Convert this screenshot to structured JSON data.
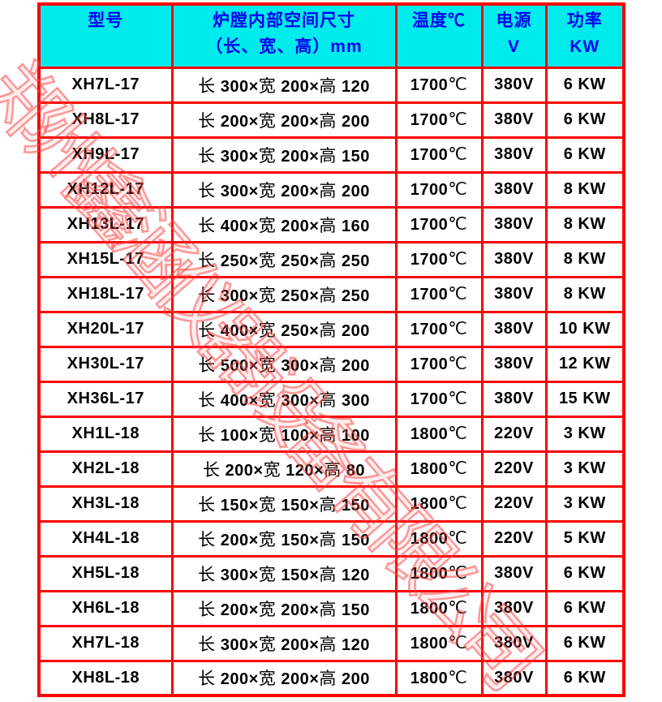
{
  "colors": {
    "border_color": "#ff0000",
    "header_bg": "#00ebeb",
    "header_text": "#0000ee",
    "watermark_red": "#ff4646"
  },
  "watermark": {
    "text": "郑州鑫涵仪器设备有限公司"
  },
  "table": {
    "headers": {
      "model": "型号",
      "size_line1": "炉膛内部空间尺寸",
      "size_line2": "（长、宽、高）mm",
      "temp": "温度℃",
      "voltage_line1": "电源",
      "voltage_line2": "V",
      "power_line1": "功率",
      "power_line2": "KW"
    },
    "rows": [
      {
        "model": "XH7L-17",
        "size": "长 300×宽 200×高 120",
        "temp": "1700℃",
        "voltage": "380V",
        "power": "6 KW"
      },
      {
        "model": "XH8L-17",
        "size": "长 200×宽 200×高 200",
        "temp": "1700℃",
        "voltage": "380V",
        "power": "6 KW"
      },
      {
        "model": "XH9L-17",
        "size": "长 300×宽 200×高 150",
        "temp": "1700℃",
        "voltage": "380V",
        "power": "6 KW"
      },
      {
        "model": "XH12L-17",
        "size": "长 300×宽 200×高 200",
        "temp": "1700℃",
        "voltage": "380V",
        "power": "8 KW"
      },
      {
        "model": "XH13L-17",
        "size": "长 400×宽 200×高 160",
        "temp": "1700℃",
        "voltage": "380V",
        "power": "8 KW"
      },
      {
        "model": "XH15L-17",
        "size": "长 250×宽 250×高 250",
        "temp": "1700℃",
        "voltage": "380V",
        "power": "8 KW"
      },
      {
        "model": "XH18L-17",
        "size": "长 300×宽 250×高 250",
        "temp": "1700℃",
        "voltage": "380V",
        "power": "8 KW"
      },
      {
        "model": "XH20L-17",
        "size": "长 400×宽 250×高 200",
        "temp": "1700℃",
        "voltage": "380V",
        "power": "10 KW"
      },
      {
        "model": "XH30L-17",
        "size": "长 500×宽 300×高 200",
        "temp": "1700℃",
        "voltage": "380V",
        "power": "12 KW"
      },
      {
        "model": "XH36L-17",
        "size": "长 400×宽 300×高 300",
        "temp": "1700℃",
        "voltage": "380V",
        "power": "15 KW"
      },
      {
        "model": "XH1L-18",
        "size": "长 100×宽 100×高 100",
        "temp": "1800℃",
        "voltage": "220V",
        "power": "3 KW"
      },
      {
        "model": "XH2L-18",
        "size": "长 200×宽 120×高 80",
        "temp": "1800℃",
        "voltage": "220V",
        "power": "3 KW"
      },
      {
        "model": "XH3L-18",
        "size": "长 150×宽 150×高 150",
        "temp": "1800℃",
        "voltage": "220V",
        "power": "3 KW"
      },
      {
        "model": "XH4L-18",
        "size": "长 200×宽 150×高 150",
        "temp": "1800℃",
        "voltage": "220V",
        "power": "5 KW"
      },
      {
        "model": "XH5L-18",
        "size": "长 300×宽 150×高 120",
        "temp": "1800℃",
        "voltage": "380V",
        "power": "6 KW"
      },
      {
        "model": "XH6L-18",
        "size": "长 200×宽 200×高 150",
        "temp": "1800℃",
        "voltage": "380V",
        "power": "6 KW"
      },
      {
        "model": "XH7L-18",
        "size": "长 300×宽 200×高 120",
        "temp": "1800℃",
        "voltage": "380V",
        "power": "6 KW"
      },
      {
        "model": "XH8L-18",
        "size": "长 200×宽 200×高 200",
        "temp": "1800℃",
        "voltage": "380V",
        "power": "6 KW"
      }
    ]
  }
}
